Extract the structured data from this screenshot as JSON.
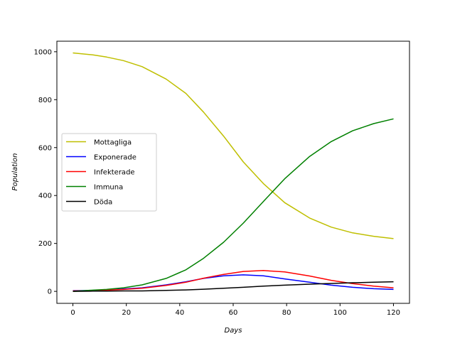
{
  "chart_data": {
    "type": "line",
    "xlabel": "Days",
    "ylabel": "Population",
    "xlim": [
      -6,
      126
    ],
    "ylim": [
      -50,
      1044
    ],
    "xticks": [
      0,
      20,
      40,
      60,
      80,
      100,
      120
    ],
    "yticks": [
      0,
      200,
      400,
      600,
      800,
      1000
    ],
    "legend_position": "center-left",
    "grid": false,
    "x": [
      0,
      7.5,
      12.6,
      18.9,
      25.9,
      34.9,
      42.3,
      48.9,
      56.4,
      63.8,
      71.3,
      79.3,
      88.6,
      96.7,
      104.7,
      112.6,
      120
    ],
    "series": [
      {
        "name": "Mottagliga",
        "color": "#bfbf00",
        "values": [
          995,
          987,
          978,
          963,
          938,
          886,
          826,
          748,
          648,
          540,
          450,
          370,
          306,
          268,
          244,
          230,
          220
        ]
      },
      {
        "name": "Exponerade",
        "color": "#0000ff",
        "values": [
          3,
          4,
          6,
          10,
          15,
          27,
          40,
          54,
          65,
          69,
          65,
          52,
          38,
          26,
          17,
          11,
          8
        ]
      },
      {
        "name": "Infekterade",
        "color": "#ff0000",
        "values": [
          2,
          3,
          5,
          8,
          13,
          25,
          38,
          55,
          71,
          83,
          87,
          81,
          64,
          46,
          32,
          22,
          15
        ]
      },
      {
        "name": "Immuna",
        "color": "#008000",
        "values": [
          0,
          5,
          8,
          15,
          27,
          54,
          90,
          138,
          205,
          285,
          375,
          470,
          563,
          625,
          670,
          700,
          720
        ]
      },
      {
        "name": "Döda",
        "color": "#000000",
        "values": [
          0,
          1,
          1,
          2,
          2,
          4,
          6,
          9,
          13,
          17,
          22,
          26,
          30,
          33,
          36,
          38,
          40
        ]
      }
    ]
  }
}
